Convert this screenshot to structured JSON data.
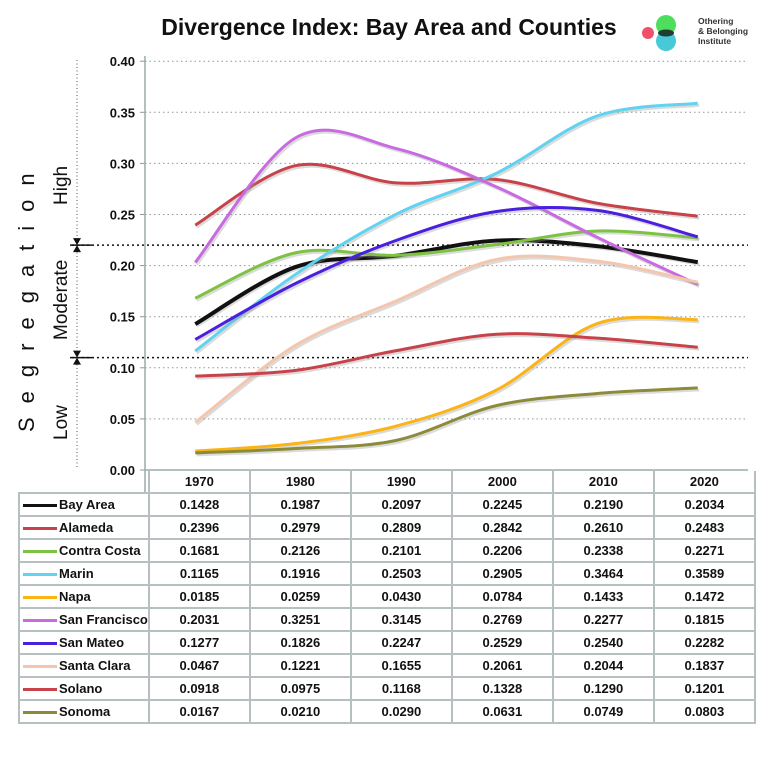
{
  "title": "Divergence Index: Bay Area and Counties",
  "logo": {
    "line1": "Othering",
    "line2": "& Belonging",
    "line3": "Institute"
  },
  "side_labels": {
    "axis": "Segregation",
    "high": "High",
    "moderate": "Moderate",
    "low": "Low"
  },
  "chart_data": {
    "type": "line",
    "title": "Divergence Index: Bay Area and Counties",
    "ylabel": "Segregation",
    "ylim": [
      0,
      0.4
    ],
    "yticks": [
      "0.00",
      "0.05",
      "0.10",
      "0.15",
      "0.20",
      "0.25",
      "0.30",
      "0.35",
      "0.40"
    ],
    "categories": [
      "1970",
      "1980",
      "1990",
      "2000",
      "2010",
      "2020"
    ],
    "grid": true,
    "thresholds": [
      {
        "value": 0.22,
        "between": [
          "Moderate",
          "High"
        ]
      },
      {
        "value": 0.11,
        "between": [
          "Low",
          "Moderate"
        ]
      }
    ],
    "series": [
      {
        "name": "Bay Area",
        "color": "#111111",
        "values": [
          "0.1428",
          "0.1987",
          "0.2097",
          "0.2245",
          "0.2190",
          "0.2034"
        ]
      },
      {
        "name": "Alameda",
        "color": "#c8424a",
        "values": [
          "0.2396",
          "0.2979",
          "0.2809",
          "0.2842",
          "0.2610",
          "0.2483"
        ]
      },
      {
        "name": "Contra Costa",
        "color": "#7dc242",
        "values": [
          "0.1681",
          "0.2126",
          "0.2101",
          "0.2206",
          "0.2338",
          "0.2271"
        ]
      },
      {
        "name": "Marin",
        "color": "#5fd3f0",
        "values": [
          "0.1165",
          "0.1916",
          "0.2503",
          "0.2905",
          "0.3464",
          "0.3589"
        ]
      },
      {
        "name": "Napa",
        "color": "#fbb415",
        "values": [
          "0.0185",
          "0.0259",
          "0.0430",
          "0.0784",
          "0.1433",
          "0.1472"
        ]
      },
      {
        "name": "San Francisco",
        "color": "#c86be0",
        "values": [
          "0.2031",
          "0.3251",
          "0.3145",
          "0.2769",
          "0.2277",
          "0.1815"
        ]
      },
      {
        "name": "San Mateo",
        "color": "#4a1fe0",
        "values": [
          "0.1277",
          "0.1826",
          "0.2247",
          "0.2529",
          "0.2540",
          "0.2282"
        ]
      },
      {
        "name": "Santa Clara",
        "color": "#f5c6ae",
        "values": [
          "0.0467",
          "0.1221",
          "0.1655",
          "0.2061",
          "0.2044",
          "0.1837"
        ]
      },
      {
        "name": "Solano",
        "color": "#c8424a",
        "values": [
          "0.0918",
          "0.0975",
          "0.1168",
          "0.1328",
          "0.1290",
          "0.1201"
        ]
      },
      {
        "name": "Sonoma",
        "color": "#8b8b3a",
        "values": [
          "0.0167",
          "0.0210",
          "0.0290",
          "0.0631",
          "0.0749",
          "0.0803"
        ]
      }
    ]
  }
}
